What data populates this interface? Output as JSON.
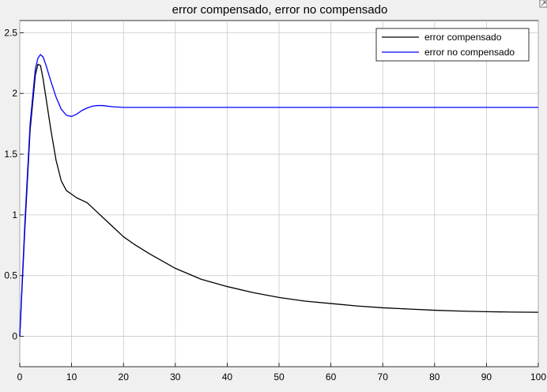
{
  "chart_data": {
    "type": "line",
    "title": "error compensado, error no compensado",
    "xlabel": "",
    "ylabel": "",
    "xlim": [
      0,
      100
    ],
    "ylim": [
      -0.25,
      2.6
    ],
    "xticks": [
      0,
      10,
      20,
      30,
      40,
      50,
      60,
      70,
      80,
      90,
      100
    ],
    "yticks": [
      0,
      0.5,
      1,
      1.5,
      2,
      2.5
    ],
    "xtick_labels": [
      "0",
      "10",
      "20",
      "30",
      "40",
      "50",
      "60",
      "70",
      "80",
      "90",
      "100"
    ],
    "ytick_labels": [
      "0",
      "0.5",
      "1",
      "1.5",
      "2",
      "2.5"
    ],
    "grid": true,
    "legend_position": "top-right",
    "series": [
      {
        "name": "error compensado",
        "color": "#000000",
        "x": [
          0,
          1,
          2,
          3,
          3.5,
          4,
          4.5,
          5,
          6,
          7,
          8,
          9,
          10,
          11,
          12,
          13,
          14,
          16,
          18,
          20,
          22,
          25,
          30,
          35,
          40,
          45,
          50,
          55,
          60,
          65,
          70,
          75,
          80,
          85,
          90,
          95,
          100
        ],
        "y": [
          0,
          0.9,
          1.7,
          2.15,
          2.24,
          2.23,
          2.12,
          1.98,
          1.7,
          1.45,
          1.28,
          1.2,
          1.17,
          1.14,
          1.12,
          1.1,
          1.06,
          0.98,
          0.9,
          0.82,
          0.76,
          0.68,
          0.56,
          0.47,
          0.41,
          0.36,
          0.32,
          0.29,
          0.27,
          0.25,
          0.235,
          0.225,
          0.215,
          0.208,
          0.203,
          0.2,
          0.198
        ]
      },
      {
        "name": "error no compensado",
        "color": "#0000ff",
        "x": [
          0,
          1,
          2,
          3,
          3.5,
          4,
          4.5,
          5,
          6,
          7,
          8,
          9,
          10,
          11,
          12,
          13,
          14,
          15,
          16,
          18,
          20,
          22,
          25,
          30,
          40,
          50,
          60,
          70,
          80,
          90,
          100
        ],
        "y": [
          0,
          0.95,
          1.75,
          2.2,
          2.29,
          2.32,
          2.3,
          2.24,
          2.1,
          1.97,
          1.87,
          1.82,
          1.81,
          1.83,
          1.86,
          1.88,
          1.895,
          1.9,
          1.9,
          1.89,
          1.885,
          1.885,
          1.885,
          1.885,
          1.885,
          1.885,
          1.885,
          1.885,
          1.885,
          1.885,
          1.885
        ]
      }
    ]
  }
}
